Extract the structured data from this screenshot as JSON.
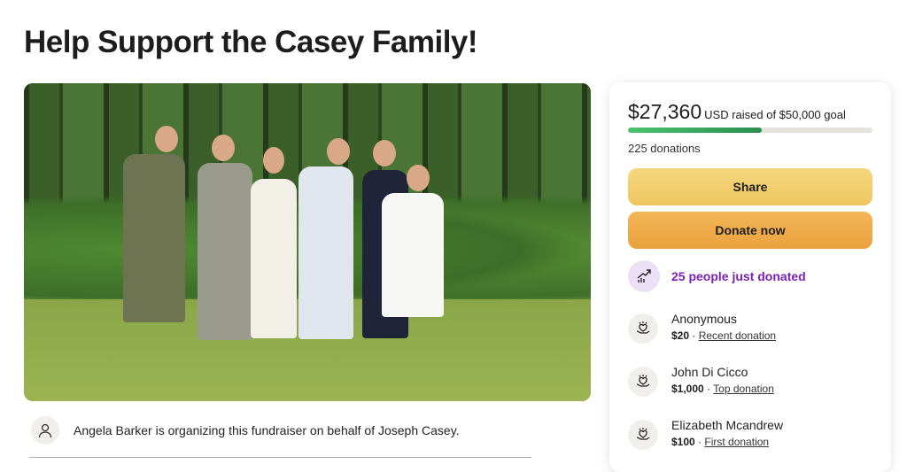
{
  "page": {
    "title": "Help Support the Casey Family!"
  },
  "fundraiser": {
    "raised": "$27,360",
    "raised_suffix": "USD raised of $50,000 goal",
    "progress_percent": 54.7,
    "donations_count": "225 donations",
    "share_label": "Share",
    "donate_label": "Donate now",
    "trend_text": "25 people just donated",
    "colors": {
      "progress": "#2b8e4f",
      "share": "#f0c65f",
      "donate": "#eba13e",
      "trend": "#7a1fb8"
    }
  },
  "donations": [
    {
      "name": "Anonymous",
      "amount": "$20",
      "tag": "Recent donation"
    },
    {
      "name": "John Di Cicco",
      "amount": "$1,000",
      "tag": "Top donation"
    },
    {
      "name": "Elizabeth Mcandrew",
      "amount": "$100",
      "tag": "First donation"
    }
  ],
  "organizer": {
    "text": "Angela Barker is organizing this fundraiser on behalf of Joseph Casey."
  }
}
